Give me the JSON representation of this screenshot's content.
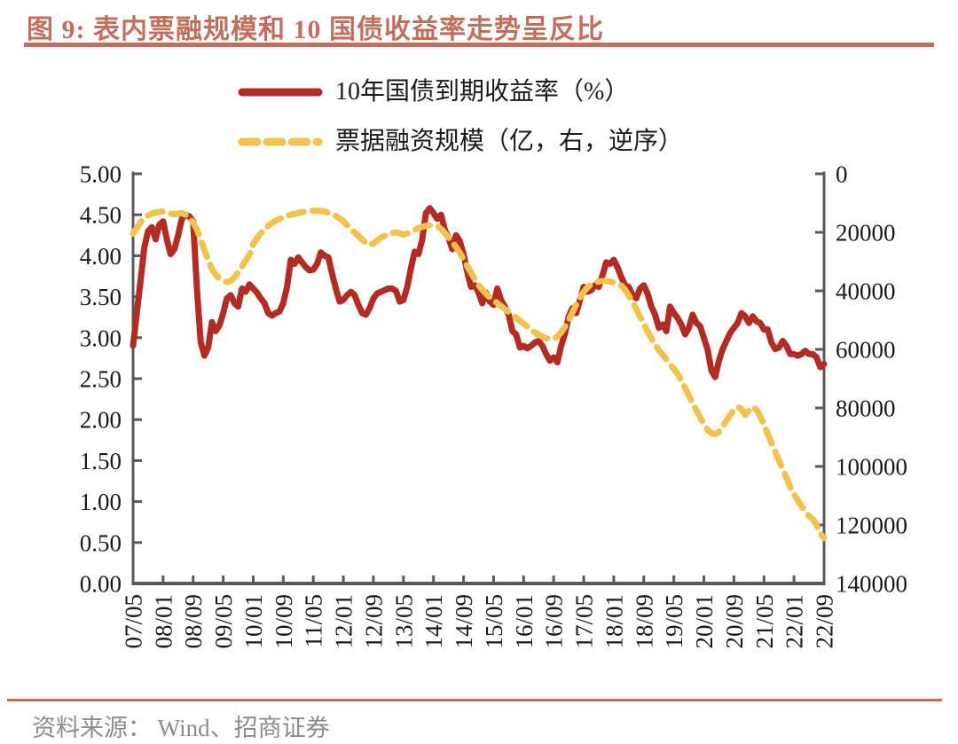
{
  "figure": {
    "title": "图 9: 表内票融规模和 10 国债收益率走势呈反比",
    "source_label": "资料来源： Wind、招商证券",
    "accent_color": "#C0705C",
    "axis_color": "#595959",
    "text_color": "#1a1a1a",
    "source_text_color": "#8C8C8C"
  },
  "legend": {
    "items": [
      {
        "label": "10年国债到期收益率（%）",
        "color": "#B22C24",
        "style": "solid"
      },
      {
        "label": "票据融资规模（亿，右，逆序）",
        "color": "#F2C24E",
        "style": "dashed"
      }
    ]
  },
  "chart_data": {
    "type": "line",
    "title": "图 9: 表内票融规模和 10 国债收益率走势呈反比",
    "x_start": "2007-05",
    "x_end": "2022-09",
    "x_frequency": "monthly",
    "x_tick_labels": [
      "07/05",
      "08/01",
      "08/09",
      "09/05",
      "10/01",
      "10/09",
      "11/05",
      "12/01",
      "12/09",
      "13/05",
      "14/01",
      "14/09",
      "15/05",
      "16/01",
      "16/09",
      "17/05",
      "18/01",
      "18/09",
      "19/05",
      "20/01",
      "20/09",
      "21/05",
      "22/01",
      "22/09"
    ],
    "left_axis": {
      "min": 0,
      "max": 5,
      "step": 0.5,
      "tick_labels": [
        "5.00",
        "4.50",
        "4.00",
        "3.50",
        "3.00",
        "2.50",
        "2.00",
        "1.50",
        "1.00",
        "0.50",
        "0.00"
      ]
    },
    "right_axis": {
      "min": 0,
      "max": 140000,
      "step": 20000,
      "inverted": true,
      "tick_labels": [
        "0",
        "20000",
        "40000",
        "60000",
        "80000",
        "100000",
        "120000",
        "140000"
      ]
    },
    "grid": false,
    "legend_position": "top",
    "series": [
      {
        "name": "10年国债到期收益率（%）",
        "axis": "left",
        "style": "solid",
        "color": "#B22C24",
        "values": [
          2.9,
          3.3,
          3.7,
          4.1,
          4.3,
          4.35,
          4.2,
          4.38,
          4.42,
          4.2,
          4.02,
          4.08,
          4.25,
          4.45,
          4.5,
          4.48,
          4.42,
          3.6,
          2.95,
          2.78,
          2.88,
          3.19,
          3.08,
          3.15,
          3.3,
          3.48,
          3.52,
          3.42,
          3.38,
          3.6,
          3.56,
          3.65,
          3.6,
          3.55,
          3.48,
          3.42,
          3.3,
          3.27,
          3.3,
          3.32,
          3.42,
          3.62,
          3.95,
          3.9,
          3.98,
          3.92,
          3.86,
          3.82,
          3.83,
          3.9,
          4.04,
          4.0,
          3.98,
          3.78,
          3.6,
          3.44,
          3.46,
          3.52,
          3.56,
          3.52,
          3.4,
          3.3,
          3.28,
          3.36,
          3.48,
          3.54,
          3.56,
          3.58,
          3.6,
          3.6,
          3.57,
          3.44,
          3.46,
          3.62,
          3.85,
          4.05,
          4.02,
          4.2,
          4.52,
          4.58,
          4.52,
          4.45,
          4.5,
          4.32,
          4.22,
          4.08,
          4.25,
          4.18,
          4.02,
          3.8,
          3.62,
          3.64,
          3.55,
          3.42,
          3.55,
          3.44,
          3.4,
          3.6,
          3.46,
          3.38,
          3.28,
          3.08,
          3.04,
          2.88,
          2.9,
          2.87,
          2.9,
          2.94,
          2.96,
          2.9,
          2.8,
          2.72,
          2.76,
          2.7,
          2.9,
          3.05,
          3.26,
          3.36,
          3.3,
          3.46,
          3.62,
          3.56,
          3.58,
          3.64,
          3.62,
          3.76,
          3.92,
          3.9,
          3.95,
          3.86,
          3.74,
          3.64,
          3.62,
          3.52,
          3.48,
          3.6,
          3.64,
          3.54,
          3.38,
          3.28,
          3.12,
          3.16,
          3.08,
          3.38,
          3.3,
          3.24,
          3.16,
          3.04,
          3.12,
          3.28,
          3.18,
          3.14,
          3.0,
          2.85,
          2.6,
          2.52,
          2.72,
          2.86,
          2.96,
          3.06,
          3.12,
          3.18,
          3.3,
          3.26,
          3.18,
          3.26,
          3.2,
          3.18,
          3.1,
          3.1,
          2.94,
          2.86,
          2.88,
          2.96,
          2.9,
          2.8,
          2.8,
          2.78,
          2.8,
          2.84,
          2.8,
          2.8,
          2.76,
          2.64,
          2.68
        ]
      },
      {
        "name": "票据融资规模（亿，右，逆序）",
        "axis": "right",
        "style": "dashed",
        "color": "#F2C24E",
        "values": [
          20500,
          18500,
          16500,
          15000,
          14200,
          13600,
          13200,
          13000,
          12900,
          13200,
          13600,
          13800,
          13600,
          13400,
          14000,
          15000,
          16600,
          19000,
          22500,
          26000,
          29500,
          32500,
          34500,
          35800,
          36600,
          37000,
          36600,
          35400,
          33600,
          31600,
          29600,
          27600,
          24000,
          22000,
          20400,
          19000,
          17800,
          16800,
          16000,
          15400,
          14900,
          14400,
          14000,
          13700,
          13400,
          13100,
          12900,
          12700,
          12600,
          12600,
          12700,
          12900,
          13300,
          13800,
          14400,
          15200,
          16200,
          17500,
          18800,
          20000,
          21200,
          22400,
          23600,
          24400,
          23800,
          22800,
          21800,
          21200,
          20600,
          20200,
          20000,
          20300,
          20800,
          20400,
          19800,
          19200,
          18600,
          18100,
          17800,
          17600,
          17700,
          17900,
          18800,
          20200,
          21800,
          23400,
          25000,
          27000,
          29200,
          31600,
          33800,
          36000,
          38000,
          39600,
          41000,
          42200,
          43200,
          44200,
          45200,
          46200,
          47200,
          48200,
          49200,
          50200,
          51200,
          52200,
          53200,
          54200,
          55000,
          55700,
          56200,
          56600,
          56400,
          55600,
          54200,
          52200,
          50000,
          47400,
          44800,
          42400,
          40400,
          38800,
          37800,
          37200,
          36800,
          36600,
          36600,
          36800,
          37200,
          37600,
          38200,
          39600,
          41600,
          43800,
          46200,
          48800,
          51200,
          53800,
          56200,
          58200,
          60200,
          61800,
          63400,
          65000,
          66600,
          68400,
          70600,
          73200,
          75800,
          78400,
          80800,
          83200,
          85600,
          87600,
          88600,
          89000,
          88200,
          86400,
          84400,
          82400,
          80800,
          79600,
          80400,
          82400,
          81000,
          79600,
          80600,
          82800,
          85800,
          88800,
          92000,
          95000,
          98000,
          101000,
          104000,
          107000,
          109500,
          111500,
          113500,
          115500,
          117000,
          118000,
          120000,
          123000,
          124500
        ]
      }
    ]
  }
}
